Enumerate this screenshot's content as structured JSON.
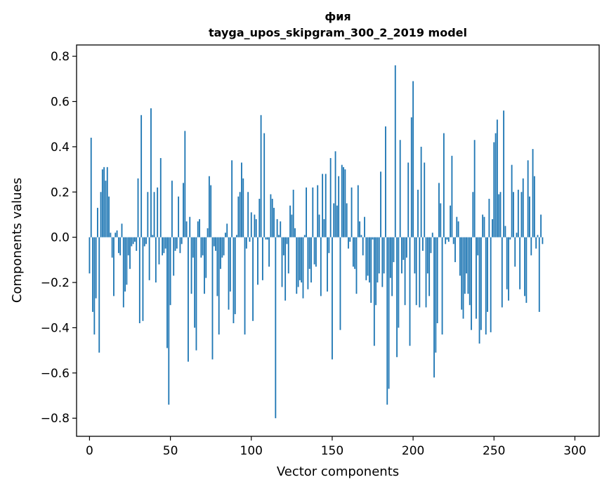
{
  "chart_data": {
    "type": "bar",
    "title_line1": "фия",
    "title_line2": "tayga_upos_skipgram_300_2_2019 model",
    "xlabel": "Vector components",
    "ylabel": "Components values",
    "xlim": [
      -8,
      315
    ],
    "ylim": [
      -0.88,
      0.85
    ],
    "xticks": [
      0,
      50,
      100,
      150,
      200,
      250,
      300
    ],
    "xtick_labels": [
      "0",
      "50",
      "100",
      "150",
      "200",
      "250",
      "300"
    ],
    "yticks": [
      -0.8,
      -0.6,
      -0.4,
      -0.2,
      0.0,
      0.2,
      0.4,
      0.6,
      0.8
    ],
    "ytick_labels": [
      "−0.8",
      "−0.6",
      "−0.4",
      "−0.2",
      "0.0",
      "0.2",
      "0.4",
      "0.6",
      "0.8"
    ],
    "bar_color": "#1f77b4",
    "values": [
      -0.16,
      0.44,
      -0.33,
      -0.43,
      -0.27,
      0.13,
      -0.51,
      0.2,
      0.3,
      0.31,
      0.25,
      0.31,
      0.18,
      0.02,
      -0.09,
      -0.26,
      0.02,
      0.03,
      -0.07,
      -0.08,
      0.06,
      -0.31,
      -0.24,
      -0.21,
      -0.08,
      -0.14,
      -0.04,
      -0.03,
      -0.02,
      -0.06,
      0.26,
      -0.38,
      0.54,
      -0.37,
      -0.04,
      -0.03,
      0.2,
      -0.19,
      0.57,
      0.01,
      0.2,
      -0.2,
      0.22,
      -0.12,
      0.35,
      -0.08,
      -0.07,
      -0.05,
      -0.49,
      -0.74,
      -0.3,
      0.25,
      -0.17,
      -0.06,
      -0.05,
      0.18,
      -0.07,
      -0.03,
      0.24,
      0.47,
      0.07,
      -0.55,
      0.09,
      -0.25,
      -0.09,
      -0.4,
      -0.5,
      0.07,
      0.08,
      -0.09,
      -0.08,
      -0.25,
      -0.18,
      0.04,
      0.27,
      0.23,
      -0.54,
      -0.04,
      -0.06,
      -0.26,
      -0.43,
      -0.14,
      -0.09,
      -0.08,
      0.02,
      0.06,
      -0.32,
      -0.24,
      0.34,
      -0.38,
      -0.34,
      0.01,
      0.18,
      0.2,
      0.33,
      0.26,
      -0.43,
      -0.05,
      0.2,
      -0.02,
      0.11,
      -0.37,
      0.1,
      0.08,
      -0.21,
      0.17,
      0.54,
      -0.19,
      0.46,
      -0.01,
      -0.01,
      -0.13,
      0.19,
      0.17,
      0.13,
      -0.8,
      0.08,
      0.01,
      0.07,
      -0.22,
      -0.08,
      -0.28,
      -0.03,
      -0.16,
      0.14,
      0.1,
      0.21,
      0.04,
      -0.25,
      -0.22,
      -0.19,
      -0.2,
      -0.27,
      0.01,
      0.22,
      -0.23,
      -0.14,
      -0.2,
      0.22,
      -0.12,
      -0.13,
      0.23,
      0.1,
      -0.26,
      0.28,
      0.08,
      0.28,
      -0.24,
      -0.07,
      0.35,
      -0.54,
      0.15,
      0.38,
      0.14,
      0.27,
      -0.41,
      0.32,
      0.31,
      0.3,
      0.15,
      -0.05,
      -0.02,
      0.22,
      -0.13,
      -0.14,
      -0.25,
      0.23,
      0.07,
      0.01,
      -0.08,
      0.09,
      -0.19,
      -0.17,
      -0.2,
      -0.29,
      -0.01,
      -0.48,
      -0.3,
      -0.2,
      -0.16,
      0.29,
      -0.22,
      -0.16,
      0.49,
      -0.74,
      -0.67,
      -0.18,
      -0.26,
      -0.11,
      0.76,
      -0.53,
      -0.4,
      0.43,
      -0.16,
      -0.1,
      -0.3,
      -0.09,
      0.33,
      -0.48,
      0.53,
      0.69,
      -0.16,
      -0.3,
      0.21,
      -0.31,
      0.4,
      -0.06,
      0.33,
      -0.31,
      -0.16,
      -0.26,
      -0.07,
      0.02,
      -0.62,
      -0.51,
      -0.38,
      0.24,
      0.15,
      -0.43,
      0.46,
      -0.03,
      -0.01,
      -0.02,
      0.14,
      0.36,
      -0.03,
      -0.11,
      0.09,
      0.07,
      -0.17,
      -0.32,
      -0.36,
      -0.25,
      -0.16,
      -0.25,
      -0.3,
      -0.41,
      0.2,
      0.43,
      -0.36,
      -0.08,
      -0.47,
      -0.41,
      0.1,
      0.09,
      -0.43,
      -0.33,
      0.17,
      -0.42,
      0.08,
      0.42,
      0.46,
      0.52,
      0.19,
      0.2,
      -0.31,
      0.56,
      0.05,
      -0.23,
      -0.28,
      -0.01,
      0.32,
      0.2,
      -0.13,
      0.02,
      0.21,
      -0.23,
      0.2,
      0.26,
      -0.26,
      -0.29,
      0.34,
      0.18,
      -0.08,
      0.39,
      0.27,
      -0.05,
      0.01,
      -0.33,
      0.1,
      -0.03
    ]
  }
}
